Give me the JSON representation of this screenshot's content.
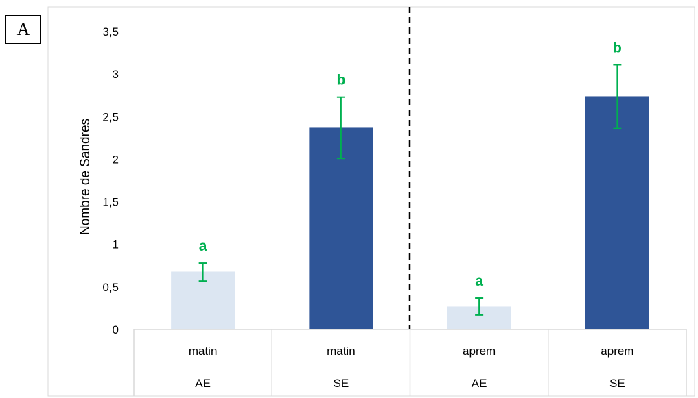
{
  "panel_label": "A",
  "chart_data": {
    "type": "bar",
    "ylabel": "Nombre de Sandres",
    "ylim": [
      0,
      3.5
    ],
    "y_ticks": [
      "0",
      "0,5",
      "1",
      "1,5",
      "2",
      "2,5",
      "3",
      "3,5"
    ],
    "categories": [
      {
        "period": "matin",
        "group": "AE"
      },
      {
        "period": "matin",
        "group": "SE"
      },
      {
        "period": "aprem",
        "group": "AE"
      },
      {
        "period": "aprem",
        "group": "SE"
      }
    ],
    "values": [
      0.68,
      2.37,
      0.27,
      2.74
    ],
    "error_low": [
      0.57,
      2.01,
      0.17,
      2.36
    ],
    "error_high": [
      0.78,
      2.73,
      0.37,
      3.11
    ],
    "significance_letters": [
      "a",
      "b",
      "a",
      "b"
    ],
    "bar_colors": [
      "#dce6f2",
      "#2f5597",
      "#dce6f2",
      "#2f5597"
    ],
    "error_color": "#00b050",
    "letter_color": "#00b050",
    "divider": "dashed line between matin and aprem",
    "grid": false
  }
}
